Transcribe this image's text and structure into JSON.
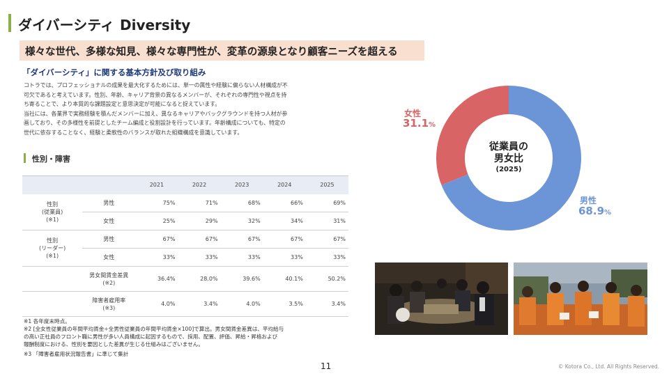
{
  "header": {
    "title_jp": "ダイバーシティ",
    "title_en": "Diversity"
  },
  "banner": {
    "text": "様々な世代、多様な知見、様々な専門性が、変革の源泉となり顧客ニーズを超える"
  },
  "policy": {
    "heading": "「ダイバーシティ」に関する基本方針及び取り組み",
    "lines": [
      "コトラでは、プロフェッショナルの成果を最大化するためには、単一の属性や経験に偏らない人材構成が不",
      "可欠であると考えています。性別、年齢、キャリア背景の異なるメンバーが、それぞれの専門性や視点を持",
      "ち寄ることで、より本質的な課題設定と意思決定が可能になると捉えています。",
      "当社には、各業界で実務経験を積んだメンバーに加え、異なるキャリアやバックグラウンドを持つ人材が参",
      "画しており、その多様性を前提としたチーム編成と役割設計を行っています。年齢構成についても、特定の",
      "世代に依存することなく、経験と柔軟性のバランスが取れた組織構成を意識しています。"
    ]
  },
  "table_section": {
    "title": "性別・障害",
    "years": [
      "2021",
      "2022",
      "2023",
      "2024",
      "2025"
    ],
    "groups": [
      {
        "label_lines": [
          "性別",
          "(従業員)",
          "(※1)"
        ],
        "rows": [
          {
            "label": "男性",
            "values": [
              "75%",
              "71%",
              "68%",
              "66%",
              "69%"
            ]
          },
          {
            "label": "女性",
            "values": [
              "25%",
              "29%",
              "32%",
              "34%",
              "31%"
            ]
          }
        ]
      },
      {
        "label_lines": [
          "性別",
          "(リーダー)",
          "(※1)"
        ],
        "rows": [
          {
            "label": "男性",
            "values": [
              "67%",
              "67%",
              "67%",
              "67%",
              "67%"
            ]
          },
          {
            "label": "女性",
            "values": [
              "33%",
              "33%",
              "33%",
              "33%",
              "33%"
            ]
          }
        ]
      }
    ],
    "wage_gap": {
      "label_lines": [
        "男女間賃金差異",
        "(※2)"
      ],
      "values": [
        "36.4%",
        "28.0%",
        "39.6%",
        "40.1%",
        "50.2%"
      ]
    },
    "disability": {
      "label_lines": [
        "障害者雇用率",
        "(※3)"
      ],
      "values": [
        "4.0%",
        "3.4%",
        "4.0%",
        "3.5%",
        "3.4%"
      ]
    }
  },
  "notes": {
    "n1": "※1 各年度末時点。",
    "n2": [
      "※2 [全女性従業員の年間平均賃金÷全男性従業員の年間平均賃金×100]で算出。男女間賃金差異は、平均給与",
      "の高い正社員のフロント職に男性が多い人員構成に起因するもので、採用、配置、評価、昇給・昇格および",
      "報酬制度における、性別を要因とした差異が生じる仕組みはございません。"
    ],
    "n3": "※3 「障害者雇用状況報告書」に準じて集計"
  },
  "chart_data": {
    "type": "pie",
    "center_text": [
      "従業員の",
      "男女比",
      "(2025)"
    ],
    "slices": [
      {
        "label": "女性",
        "value": 31.1,
        "display": "31.1",
        "color": "#d86466"
      },
      {
        "label": "男性",
        "value": 68.9,
        "display": "68.9",
        "color": "#6b95d6"
      }
    ],
    "unit": "%"
  },
  "footer": {
    "page": "11",
    "copyright": "© Kotora Co., Ltd. All Rights Reserved."
  },
  "colors": {
    "accent": "#8bb04a",
    "banner_bg": "#f9dfcf",
    "heading_blue": "#1f3a7a",
    "female": "#d86466",
    "male": "#6b95d6"
  }
}
